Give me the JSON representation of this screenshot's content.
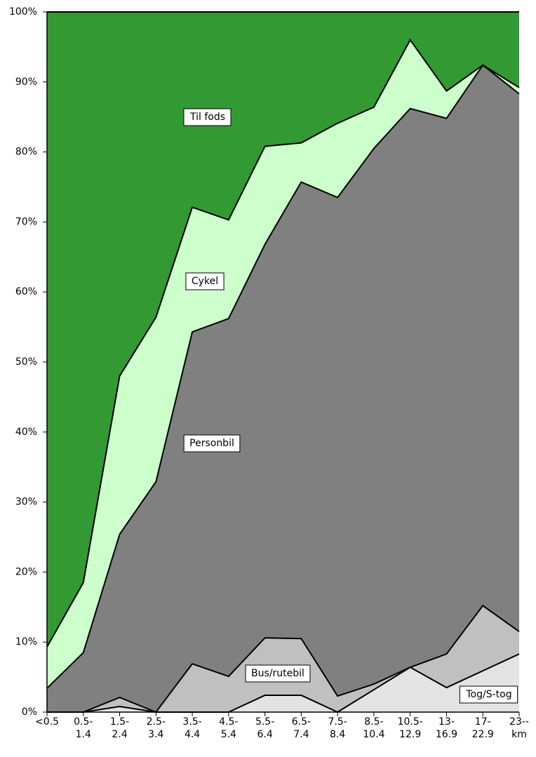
{
  "chart_data": {
    "type": "stacked_area",
    "categories": [
      [
        "<0.5"
      ],
      [
        "0.5-",
        "1.4"
      ],
      [
        "1.5-",
        "2.4"
      ],
      [
        "2.5-",
        "3.4"
      ],
      [
        "3.5-",
        "4.4"
      ],
      [
        "4.5-",
        "5.4"
      ],
      [
        "5.5-",
        "6.4"
      ],
      [
        "6.5-",
        "7.4"
      ],
      [
        "7.5-",
        "8.4"
      ],
      [
        "8.5-",
        "10.4"
      ],
      [
        "10.5-",
        "12.9"
      ],
      [
        "13-",
        "16.9"
      ],
      [
        "17-",
        "22.9"
      ],
      [
        "23--",
        "km"
      ]
    ],
    "series": [
      {
        "name": "Tog/S-tog",
        "color": "#e3e3e3",
        "values": [
          0,
          0,
          0.8,
          0,
          0,
          0,
          2.4,
          2.4,
          0,
          3.2,
          6.4,
          3.5,
          5.9,
          8.3
        ]
      },
      {
        "name": "Bus/rutebil",
        "color": "#c0c0c0",
        "values": [
          0,
          0,
          1.3,
          0,
          6.9,
          5.1,
          8.2,
          8.1,
          2.3,
          0.8,
          0,
          4.8,
          9.3,
          3.2
        ]
      },
      {
        "name": "Personbil",
        "color": "#808080",
        "values": [
          3.4,
          8.5,
          23.3,
          32.9,
          47.4,
          51.1,
          56.2,
          65.2,
          71.2,
          76.5,
          79.8,
          76.5,
          77.2,
          76.8
        ]
      },
      {
        "name": "Cykel",
        "color": "#ccffcc",
        "values": [
          5.9,
          10.0,
          22.6,
          23.5,
          17.8,
          14.1,
          14.0,
          5.6,
          10.6,
          5.9,
          9.8,
          3.9,
          0,
          0.9
        ]
      },
      {
        "name": "Til fods",
        "color": "#339933",
        "values": [
          90.7,
          81.5,
          52.0,
          43.6,
          27.9,
          29.7,
          19.2,
          18.7,
          15.9,
          13.6,
          4.0,
          11.3,
          7.6,
          10.8
        ]
      }
    ],
    "ylim": [
      0,
      100
    ],
    "yticks": [
      {
        "value": 0,
        "label": "0%"
      },
      {
        "value": 10,
        "label": "10%"
      },
      {
        "value": 20,
        "label": "20%"
      },
      {
        "value": 30,
        "label": "30%"
      },
      {
        "value": 40,
        "label": "40%"
      },
      {
        "value": 50,
        "label": "50%"
      },
      {
        "value": 60,
        "label": "60%"
      },
      {
        "value": 70,
        "label": "70%"
      },
      {
        "value": 80,
        "label": "80%"
      },
      {
        "value": 90,
        "label": "90%"
      },
      {
        "value": 100,
        "label": "100%"
      }
    ],
    "grid": false
  }
}
